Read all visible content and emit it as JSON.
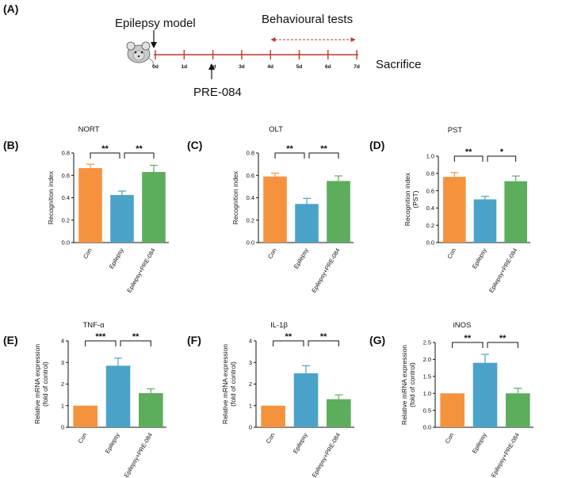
{
  "panel_labels": [
    "(A)",
    "(B)",
    "(C)",
    "(D)",
    "(E)",
    "(F)",
    "(G)"
  ],
  "timeline": {
    "model_label": "Epilepsy model",
    "tests_label": "Behavioural tests",
    "drug_label": "PRE-084",
    "end_label": "Sacrifice",
    "days": [
      "0d",
      "1d",
      "2d",
      "3d",
      "4d",
      "5d",
      "6d",
      "7d"
    ],
    "axis_color": "#c0392b"
  },
  "colors": {
    "Con": "#f5923e",
    "Epilepsy": "#4ba3c9",
    "Epilepsy+PRE-084": "#5cad5c"
  },
  "chart_data": [
    {
      "panel": "(B)",
      "type": "bar",
      "title": "NORT",
      "ylabel": [
        "Recognition index"
      ],
      "categories": [
        "Con",
        "Epilepsy",
        "Epilepsy+PRE-084"
      ],
      "values": [
        0.665,
        0.425,
        0.63
      ],
      "errors": [
        0.035,
        0.035,
        0.06
      ],
      "ylim": [
        0,
        0.8
      ],
      "yticks": [
        0.0,
        0.2,
        0.4,
        0.6,
        0.8
      ],
      "ytick_labels": [
        "0.0",
        "0.2",
        "0.4",
        "0.6",
        "0.8"
      ],
      "significance": [
        {
          "from": 0,
          "to": 1,
          "label": "**"
        },
        {
          "from": 1,
          "to": 2,
          "label": "**"
        }
      ]
    },
    {
      "panel": "(C)",
      "type": "bar",
      "title": "OLT",
      "ylabel": [
        "Recognition index"
      ],
      "categories": [
        "Con",
        "Epilepsy",
        "Epilepsy+PRE-084"
      ],
      "values": [
        0.59,
        0.345,
        0.55
      ],
      "errors": [
        0.03,
        0.05,
        0.045
      ],
      "ylim": [
        0,
        0.8
      ],
      "yticks": [
        0.0,
        0.2,
        0.4,
        0.6,
        0.8
      ],
      "ytick_labels": [
        "0.0",
        "0.2",
        "0.4",
        "0.6",
        "0.8"
      ],
      "significance": [
        {
          "from": 0,
          "to": 1,
          "label": "**"
        },
        {
          "from": 1,
          "to": 2,
          "label": "**"
        }
      ]
    },
    {
      "panel": "(D)",
      "type": "bar",
      "title": "PST",
      "ylabel": [
        "Recognition index",
        "(PST)"
      ],
      "categories": [
        "Con",
        "Epilepsy",
        "Epilepsy+PRE-084"
      ],
      "values": [
        0.76,
        0.5,
        0.71
      ],
      "errors": [
        0.05,
        0.035,
        0.06
      ],
      "ylim": [
        0,
        1.0
      ],
      "yticks": [
        0.0,
        0.2,
        0.4,
        0.6,
        0.8,
        1.0
      ],
      "ytick_labels": [
        "0.0",
        "0.2",
        "0.4",
        "0.6",
        "0.8",
        "1.0"
      ],
      "significance": [
        {
          "from": 0,
          "to": 1,
          "label": "**"
        },
        {
          "from": 1,
          "to": 2,
          "label": "*"
        }
      ]
    },
    {
      "panel": "(E)",
      "type": "bar",
      "title": "TNF-α",
      "ylabel": [
        "Relative mRNA expression",
        "(fold of control)"
      ],
      "categories": [
        "Con",
        "Epilepsy",
        "Epilepsy+PRE-084"
      ],
      "values": [
        1.0,
        2.85,
        1.58
      ],
      "errors": [
        0.0,
        0.35,
        0.2
      ],
      "ylim": [
        0,
        4
      ],
      "yticks": [
        0,
        1,
        2,
        3,
        4
      ],
      "ytick_labels": [
        "0",
        "1",
        "2",
        "3",
        "4"
      ],
      "significance": [
        {
          "from": 0,
          "to": 1,
          "label": "***"
        },
        {
          "from": 1,
          "to": 2,
          "label": "**"
        }
      ]
    },
    {
      "panel": "(F)",
      "type": "bar",
      "title": "IL-1β",
      "ylabel": [
        "Relative mRNA expression",
        "(fold of control)"
      ],
      "categories": [
        "Con",
        "Epilepsy",
        "Epilepsy+PRE-084"
      ],
      "values": [
        1.0,
        2.5,
        1.3
      ],
      "errors": [
        0.0,
        0.35,
        0.2
      ],
      "ylim": [
        0,
        4
      ],
      "yticks": [
        0,
        1,
        2,
        3,
        4
      ],
      "ytick_labels": [
        "0",
        "1",
        "2",
        "3",
        "4"
      ],
      "significance": [
        {
          "from": 0,
          "to": 1,
          "label": "**"
        },
        {
          "from": 1,
          "to": 2,
          "label": "**"
        }
      ]
    },
    {
      "panel": "(G)",
      "type": "bar",
      "title": "iNOS",
      "ylabel": [
        "Relative mRNA expression",
        "(fold of control)"
      ],
      "categories": [
        "Con",
        "Epilepsy",
        "Epilepsy+PRE-084"
      ],
      "values": [
        1.0,
        1.9,
        1.0
      ],
      "errors": [
        0.0,
        0.25,
        0.15
      ],
      "ylim": [
        0,
        2.5
      ],
      "yticks": [
        0.0,
        0.5,
        1.0,
        1.5,
        2.0,
        2.5
      ],
      "ytick_labels": [
        "0.0",
        "0.5",
        "1.0",
        "1.5",
        "2.0",
        "2.5"
      ],
      "significance": [
        {
          "from": 0,
          "to": 1,
          "label": "**"
        },
        {
          "from": 1,
          "to": 2,
          "label": "**"
        }
      ]
    }
  ]
}
